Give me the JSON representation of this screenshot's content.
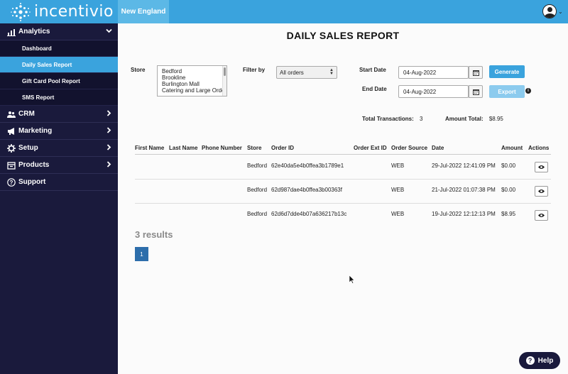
{
  "header": {
    "logo_text": "incentivio",
    "region": "New England"
  },
  "sidebar": {
    "analytics": {
      "label": "Analytics",
      "items": [
        {
          "label": "Dashboard"
        },
        {
          "label": "Daily Sales Report"
        },
        {
          "label": "Gift Card Pool Report"
        },
        {
          "label": "SMS Report"
        }
      ]
    },
    "sections": [
      {
        "label": "CRM"
      },
      {
        "label": "Marketing"
      },
      {
        "label": "Setup"
      },
      {
        "label": "Products"
      },
      {
        "label": "Support"
      }
    ]
  },
  "report": {
    "title": "DAILY SALES REPORT",
    "store_label": "Store",
    "stores": [
      "Bedford",
      "Brookline",
      "Burlington Mall",
      "Catering and Large Orde"
    ],
    "filter_label": "Filter by",
    "filter_value": "All orders",
    "start_date_label": "Start Date",
    "start_date": "04-Aug-2022",
    "end_date_label": "End Date",
    "end_date": "04-Aug-2022",
    "generate_label": "Generate",
    "export_label": "Export",
    "total_transactions_label": "Total Transactions:",
    "total_transactions": "3",
    "amount_total_label": "Amount Total:",
    "amount_total": "$8.95"
  },
  "table": {
    "headers": [
      "First Name",
      "Last Name",
      "Phone Number",
      "Store",
      "Order ID",
      "Order Ext ID",
      "Order Source",
      "Date",
      "Amount",
      "Actions"
    ],
    "rows": [
      {
        "first": "",
        "last": "",
        "phone": "",
        "store": "Bedford",
        "order_id": "62e40da5e4b0ffea3b1789e1",
        "ext_id": "",
        "source": "WEB",
        "date": "29-Jul-2022 12:41:09 PM",
        "amount": "$0.00"
      },
      {
        "first": "",
        "last": "",
        "phone": "",
        "store": "Bedford",
        "order_id": "62d987dae4b0ffea3b00363f",
        "ext_id": "",
        "source": "WEB",
        "date": "21-Jul-2022 01:07:38 PM",
        "amount": "$0.00"
      },
      {
        "first": "",
        "last": "",
        "phone": "",
        "store": "Bedford",
        "order_id": "62d6d7dde4b07a636217b13c",
        "ext_id": "",
        "source": "WEB",
        "date": "19-Jul-2022 12:12:13 PM",
        "amount": "$8.95"
      }
    ]
  },
  "pagination": {
    "results_text": "3 results",
    "current_page": "1"
  },
  "help": {
    "label": "Help"
  },
  "colors": {
    "topbar": "#3aa3dd",
    "sidebar": "#1a1a3c",
    "active": "#3aa3dd",
    "page_button": "#2d6eab"
  }
}
